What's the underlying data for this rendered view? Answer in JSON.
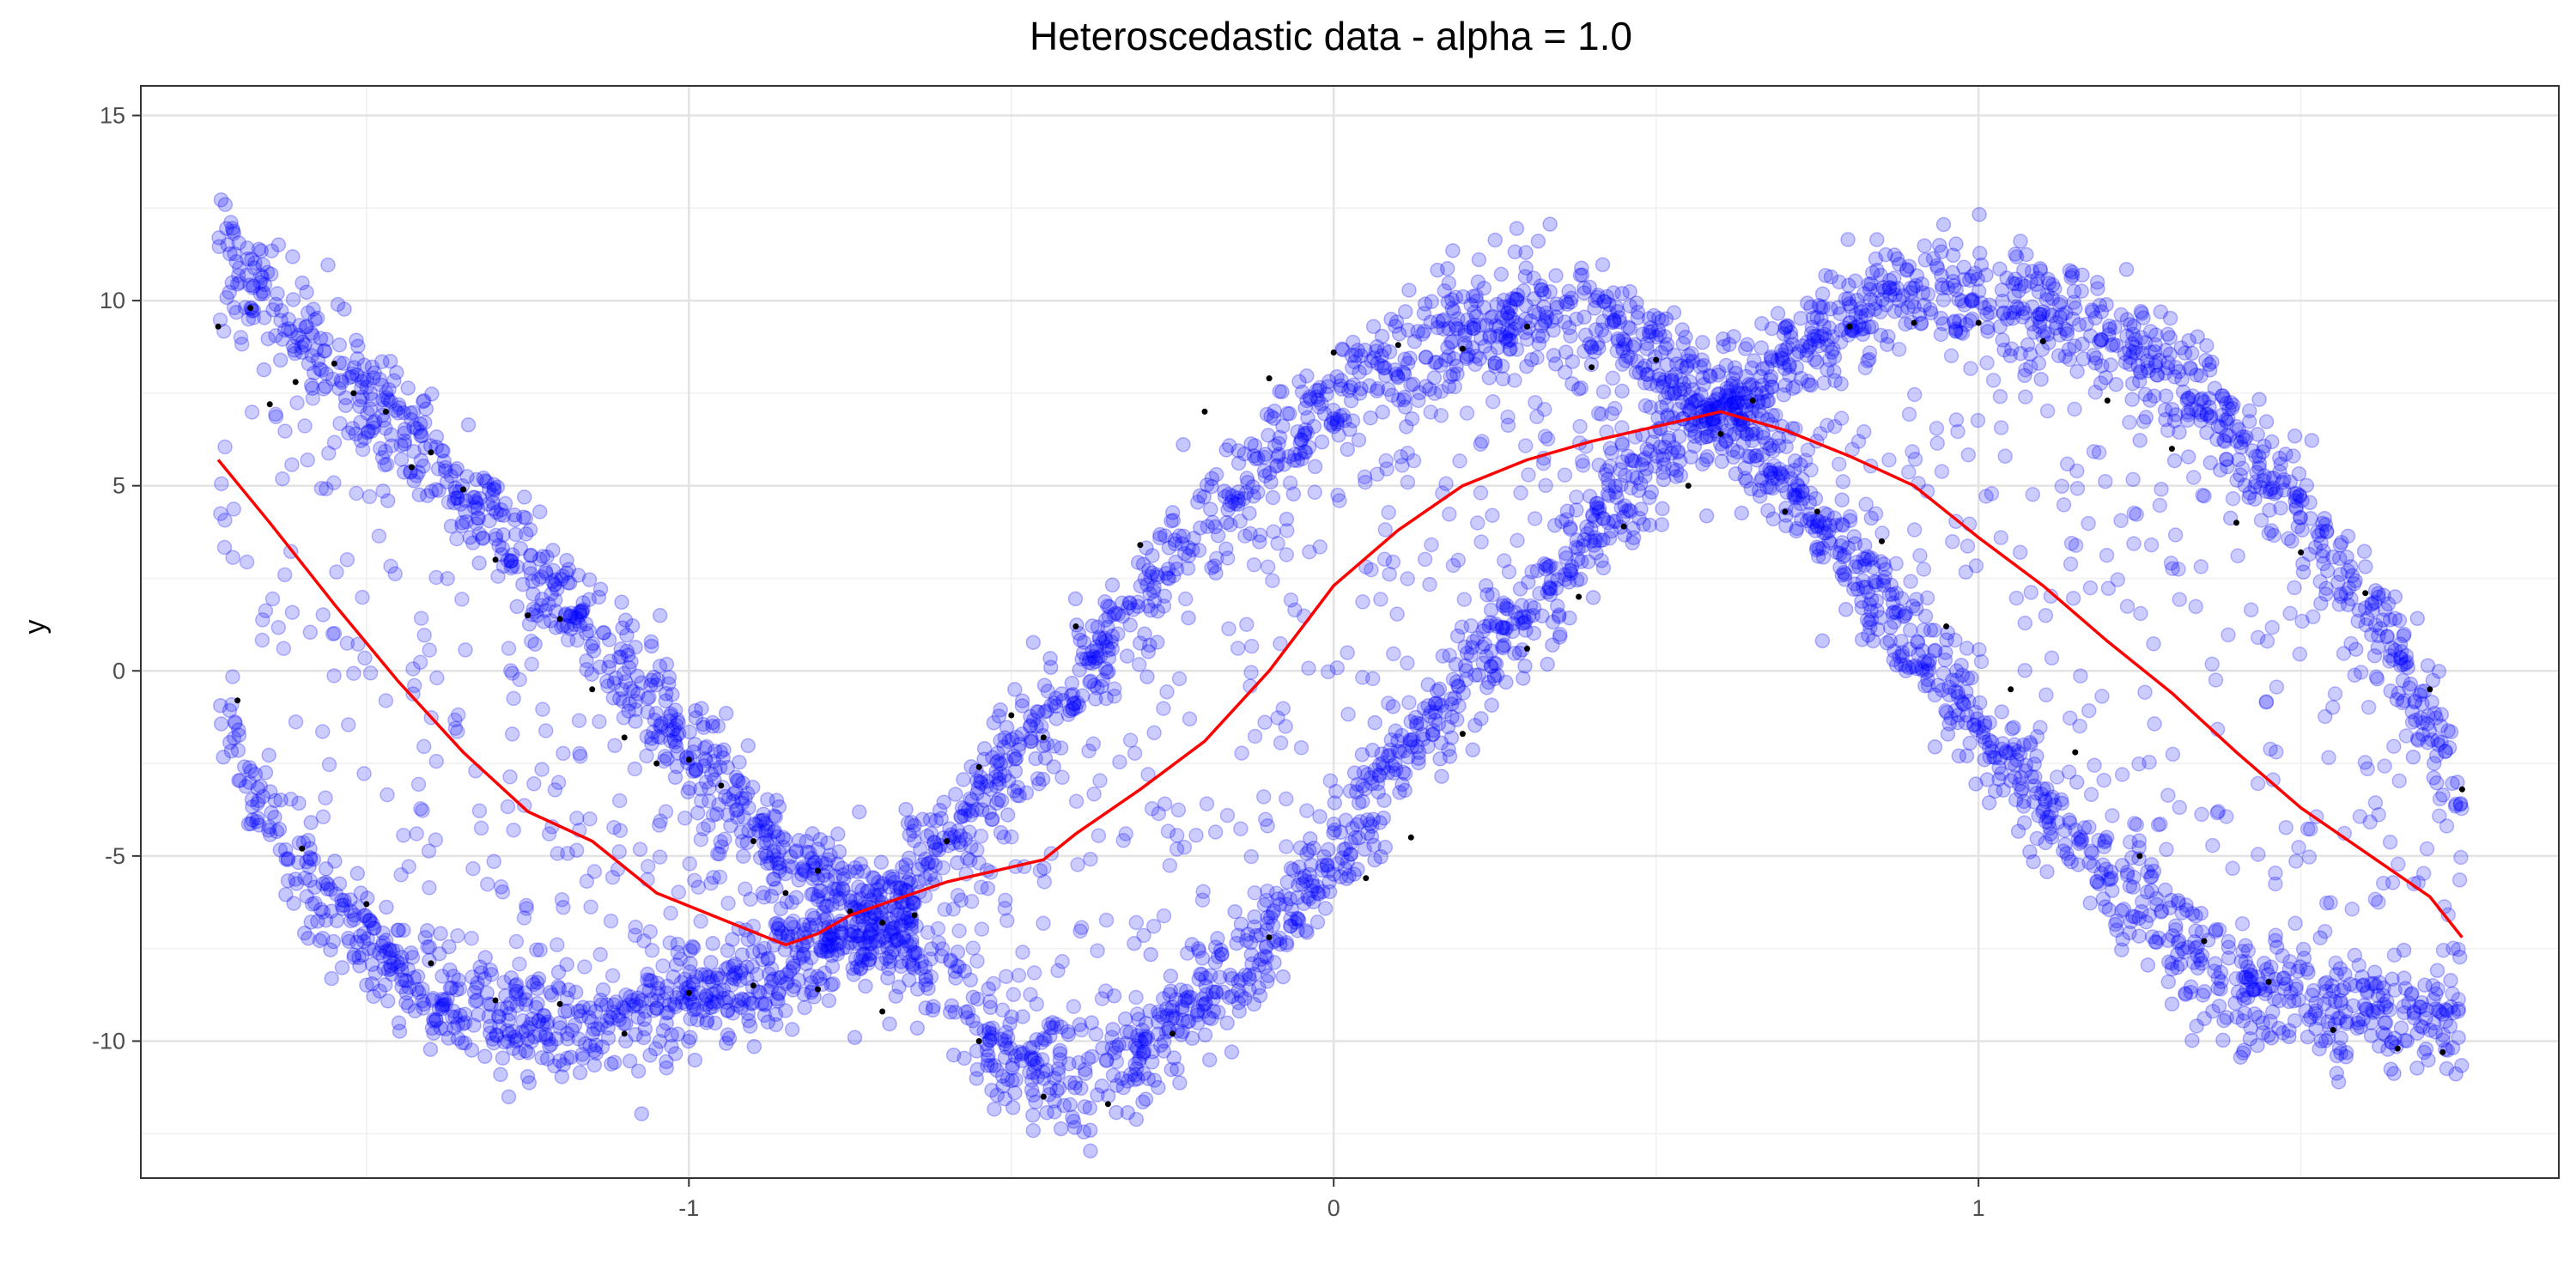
{
  "chart_data": {
    "type": "scatter",
    "title": "Heteroscedastic data - alpha = 1.0",
    "xlabel": "",
    "ylabel": "y",
    "xlim": [
      -1.85,
      1.9
    ],
    "ylim": [
      -13.7,
      15.8
    ],
    "x_ticks": [
      -1,
      0,
      1
    ],
    "x_tick_labels": [
      "-1",
      "0",
      "1"
    ],
    "y_ticks": [
      -10,
      -5,
      0,
      5,
      10,
      15
    ],
    "y_tick_labels": [
      "-10",
      "-5",
      "0",
      "5",
      "10",
      "15"
    ],
    "x_minor_ticks": [
      -1.5,
      -0.5,
      0.5,
      1.5
    ],
    "y_minor_ticks": [
      -12.5,
      -7.5,
      -2.5,
      2.5,
      7.5,
      12.5
    ],
    "grid": true,
    "legend": "none",
    "colors": {
      "points": "#0000ff",
      "subsample": "#000000",
      "trend": "#ff0000"
    },
    "series": [
      {
        "kind": "points",
        "bands": [
          {
            "x": [
              -1.73,
              -1.5,
              -1.25,
              -1.0,
              -0.85,
              -0.7,
              -0.5,
              -0.25,
              0.0,
              0.15,
              0.3,
              0.45,
              0.6,
              0.8,
              1.0,
              1.2,
              1.4,
              1.6,
              1.75
            ],
            "y": [
              11.5,
              7.3,
              3.2,
              -1.8,
              -5.0,
              -6.5,
              -2.2,
              3.0,
              7.4,
              9.0,
              9.8,
              9.3,
              7.0,
              3.0,
              -1.6,
              -5.8,
              -8.5,
              -9.3,
              -9.3
            ]
          },
          {
            "x": [
              -1.73,
              -1.6,
              -1.45,
              -1.3,
              -1.15,
              -1.0,
              -0.85,
              -0.7,
              -0.6,
              -0.5,
              -0.4,
              -0.3,
              -0.15,
              0.0,
              0.15,
              0.3,
              0.45,
              0.6,
              0.75,
              0.9,
              1.05,
              1.2,
              1.35,
              1.5,
              1.65,
              1.75
            ],
            "y": [
              -1.5,
              -5.5,
              -8.2,
              -9.6,
              -9.8,
              -9.0,
              -8.0,
              -7.3,
              -8.8,
              -10.6,
              -11.2,
              -10.2,
              -8.2,
              -5.0,
              -1.6,
              1.6,
              4.7,
              7.2,
              9.2,
              10.3,
              10.0,
              9.1,
              7.3,
              4.2,
              0.5,
              -3.3
            ]
          }
        ]
      },
      {
        "kind": "subsample",
        "x": [
          -1.73,
          -1.68,
          -1.65,
          -1.61,
          -1.55,
          -1.52,
          -1.47,
          -1.43,
          -1.4,
          -1.35,
          -1.3,
          -1.25,
          -1.2,
          -1.15,
          -1.1,
          -1.05,
          -1.0,
          -0.95,
          -0.9,
          -0.85,
          -0.8,
          -0.75,
          -0.7,
          -0.65,
          -0.6,
          -0.55,
          -0.5,
          -0.45,
          -0.4,
          -0.3,
          -0.2,
          -0.1,
          0.0,
          0.1,
          0.2,
          0.3,
          0.4,
          0.5,
          0.6,
          0.7,
          0.8,
          0.9,
          1.0,
          1.1,
          1.2,
          1.3,
          1.4,
          1.5,
          1.6,
          1.7,
          1.75,
          -1.7,
          -1.6,
          -1.5,
          -1.4,
          -1.3,
          -1.2,
          -1.1,
          -1.0,
          -0.9,
          -0.8,
          -0.7,
          -0.55,
          -0.45,
          -0.35,
          -0.25,
          -0.1,
          0.05,
          0.12,
          0.2,
          0.3,
          0.38,
          0.45,
          0.55,
          0.65,
          0.75,
          0.85,
          0.95,
          1.05,
          1.15,
          1.25,
          1.35,
          1.45,
          1.55,
          1.65,
          1.72
        ],
        "y": [
          9.3,
          9.8,
          7.2,
          7.8,
          8.3,
          7.5,
          7.0,
          5.5,
          5.9,
          4.9,
          3.0,
          1.5,
          1.4,
          -0.5,
          -1.8,
          -2.5,
          -2.4,
          -3.1,
          -4.6,
          -6.0,
          -5.4,
          -6.5,
          -6.8,
          -6.6,
          -4.6,
          -2.6,
          -1.2,
          -1.8,
          1.2,
          3.4,
          7.0,
          7.9,
          8.6,
          8.8,
          8.7,
          9.3,
          8.2,
          8.4,
          6.4,
          4.3,
          9.3,
          9.4,
          9.4,
          8.9,
          7.3,
          6.0,
          4.0,
          3.2,
          2.1,
          -0.5,
          -3.2,
          -0.8,
          -4.8,
          -6.3,
          -7.9,
          -8.9,
          -9.0,
          -9.8,
          -8.7,
          -8.5,
          -8.6,
          -9.2,
          -10.0,
          -11.5,
          -11.7,
          -9.8,
          -7.2,
          -5.6,
          -4.5,
          -1.7,
          0.6,
          2.0,
          3.9,
          5.0,
          7.3,
          4.3,
          3.5,
          1.2,
          -0.5,
          -2.2,
          -5.0,
          -7.3,
          -8.4,
          -9.7,
          -10.2,
          -10.3
        ]
      },
      {
        "kind": "trend",
        "x": [
          -1.73,
          -1.65,
          -1.55,
          -1.45,
          -1.35,
          -1.25,
          -1.15,
          -1.05,
          -0.95,
          -0.85,
          -0.8,
          -0.75,
          -0.7,
          -0.6,
          -0.5,
          -0.45,
          -0.4,
          -0.3,
          -0.2,
          -0.1,
          0.0,
          0.1,
          0.2,
          0.3,
          0.4,
          0.5,
          0.6,
          0.7,
          0.8,
          0.9,
          1.0,
          1.1,
          1.2,
          1.3,
          1.4,
          1.5,
          1.6,
          1.7,
          1.75
        ],
        "y": [
          5.7,
          4.0,
          1.8,
          -0.3,
          -2.2,
          -3.8,
          -4.6,
          -6.0,
          -6.7,
          -7.4,
          -7.1,
          -6.6,
          -6.3,
          -5.7,
          -5.3,
          -5.1,
          -4.4,
          -3.2,
          -1.9,
          0.0,
          2.3,
          3.8,
          5.0,
          5.7,
          6.2,
          6.6,
          7.0,
          6.5,
          5.8,
          5.0,
          3.6,
          2.3,
          0.8,
          -0.6,
          -2.2,
          -3.7,
          -4.9,
          -6.1,
          -7.2
        ]
      }
    ]
  }
}
